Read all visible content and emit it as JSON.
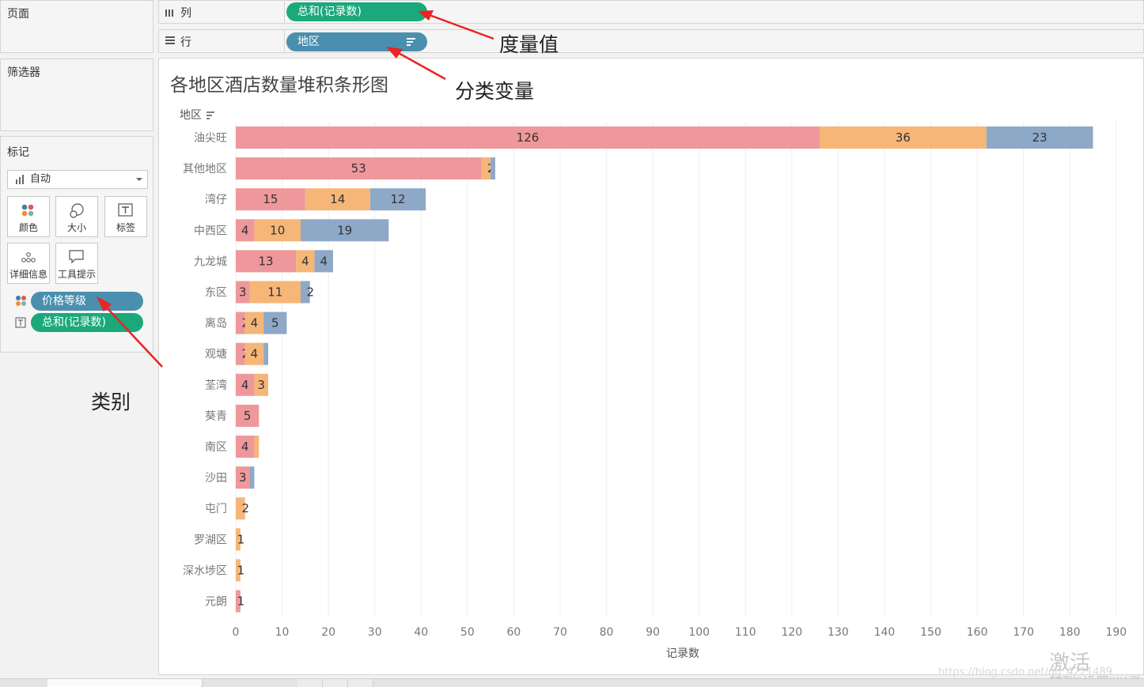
{
  "left_pane": {
    "pages_title": "页面",
    "filters_title": "筛选器",
    "marks_title": "标记",
    "mark_type": "自动",
    "mark_buttons": [
      {
        "label": "颜色",
        "icon": "color-icon"
      },
      {
        "label": "大小",
        "icon": "size-icon"
      },
      {
        "label": "标签",
        "icon": "label-icon"
      },
      {
        "label": "详细信息",
        "icon": "detail-icon"
      },
      {
        "label": "工具提示",
        "icon": "tooltip-icon"
      }
    ],
    "mark_pills": [
      {
        "label": "价格等级",
        "color": "#4a8fae"
      },
      {
        "label": "总和(记录数)",
        "color": "#1ba97c"
      }
    ]
  },
  "shelves": {
    "columns_label": "列",
    "columns_pill": "总和(记录数)",
    "rows_label": "行",
    "rows_pill": "地区"
  },
  "annotations": {
    "measure": "度量值",
    "dimension": "分类变量",
    "category": "类别"
  },
  "watermark": {
    "activate": "激活 Wind",
    "settings": "转到\"设置\"以激",
    "url": "https://blog.csdn.net/qq_4221489"
  },
  "chart_data": {
    "type": "bar",
    "orientation": "horizontal",
    "stacked": true,
    "title": "各地区酒店数量堆积条形图",
    "ylabel": "地区",
    "xlabel": "记录数",
    "xlim": [
      0,
      195
    ],
    "xticks": [
      0,
      10,
      20,
      30,
      40,
      50,
      60,
      70,
      80,
      90,
      100,
      110,
      120,
      130,
      140,
      150,
      160,
      170,
      180,
      190
    ],
    "grid": true,
    "categories": [
      "油尖旺",
      "其他地区",
      "湾仔",
      "中西区",
      "九龙城",
      "东区",
      "离岛",
      "观塘",
      "荃湾",
      "葵青",
      "南区",
      "沙田",
      "屯门",
      "罗湖区",
      "深水埗区",
      "元朗"
    ],
    "series": [
      {
        "color": "#ee989b",
        "values": [
          126,
          53,
          15,
          4,
          13,
          3,
          2,
          2,
          4,
          5,
          4,
          3,
          0,
          0,
          0,
          1
        ]
      },
      {
        "color": "#f6b678",
        "values": [
          36,
          2,
          14,
          10,
          4,
          11,
          4,
          4,
          3,
          0,
          1,
          0,
          2,
          1,
          1,
          0
        ]
      },
      {
        "color": "#8ea9c7",
        "values": [
          23,
          1,
          12,
          19,
          4,
          2,
          5,
          1,
          0,
          0,
          0,
          1,
          0,
          0,
          0,
          0
        ]
      }
    ],
    "data_labels": [
      [
        "126",
        "36",
        "23"
      ],
      [
        "53",
        "2",
        ""
      ],
      [
        "15",
        "14",
        "12"
      ],
      [
        "4",
        "10",
        "19"
      ],
      [
        "13",
        "4",
        "4"
      ],
      [
        "3",
        "11",
        "2"
      ],
      [
        "2",
        "4",
        "5"
      ],
      [
        "2",
        "4",
        ""
      ],
      [
        "4",
        "3",
        ""
      ],
      [
        "5",
        "",
        ""
      ],
      [
        "4",
        "",
        ""
      ],
      [
        "3",
        "",
        ""
      ],
      [
        "",
        "2",
        ""
      ],
      [
        "",
        "1",
        ""
      ],
      [
        "",
        "1",
        ""
      ],
      [
        "1",
        "",
        ""
      ]
    ]
  }
}
